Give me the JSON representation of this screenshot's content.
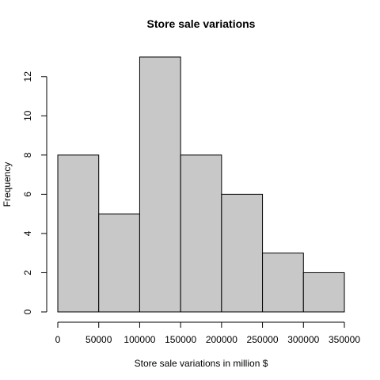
{
  "chart_data": {
    "type": "bar",
    "subtype": "histogram",
    "title": "Store sale variations",
    "xlabel": "Store sale variations in million $",
    "ylabel": "Frequency",
    "bin_edges": [
      0,
      50000,
      100000,
      150000,
      200000,
      250000,
      300000,
      350000
    ],
    "values": [
      8,
      5,
      13,
      8,
      6,
      3,
      2
    ],
    "xlim": [
      0,
      350000
    ],
    "ylim": [
      0,
      13
    ],
    "x_ticks": [
      0,
      50000,
      100000,
      150000,
      200000,
      250000,
      300000,
      350000
    ],
    "x_tick_labels": [
      "0",
      "50000",
      "100000",
      "150000",
      "200000",
      "250000",
      "300000",
      "350000"
    ],
    "y_ticks": [
      0,
      2,
      4,
      6,
      8,
      10,
      12
    ],
    "y_tick_labels": [
      "0",
      "2",
      "4",
      "6",
      "8",
      "10",
      "12"
    ],
    "bar_color": "#c8c8c8",
    "edge_color": "#000000",
    "grid": false,
    "legend": "none"
  }
}
